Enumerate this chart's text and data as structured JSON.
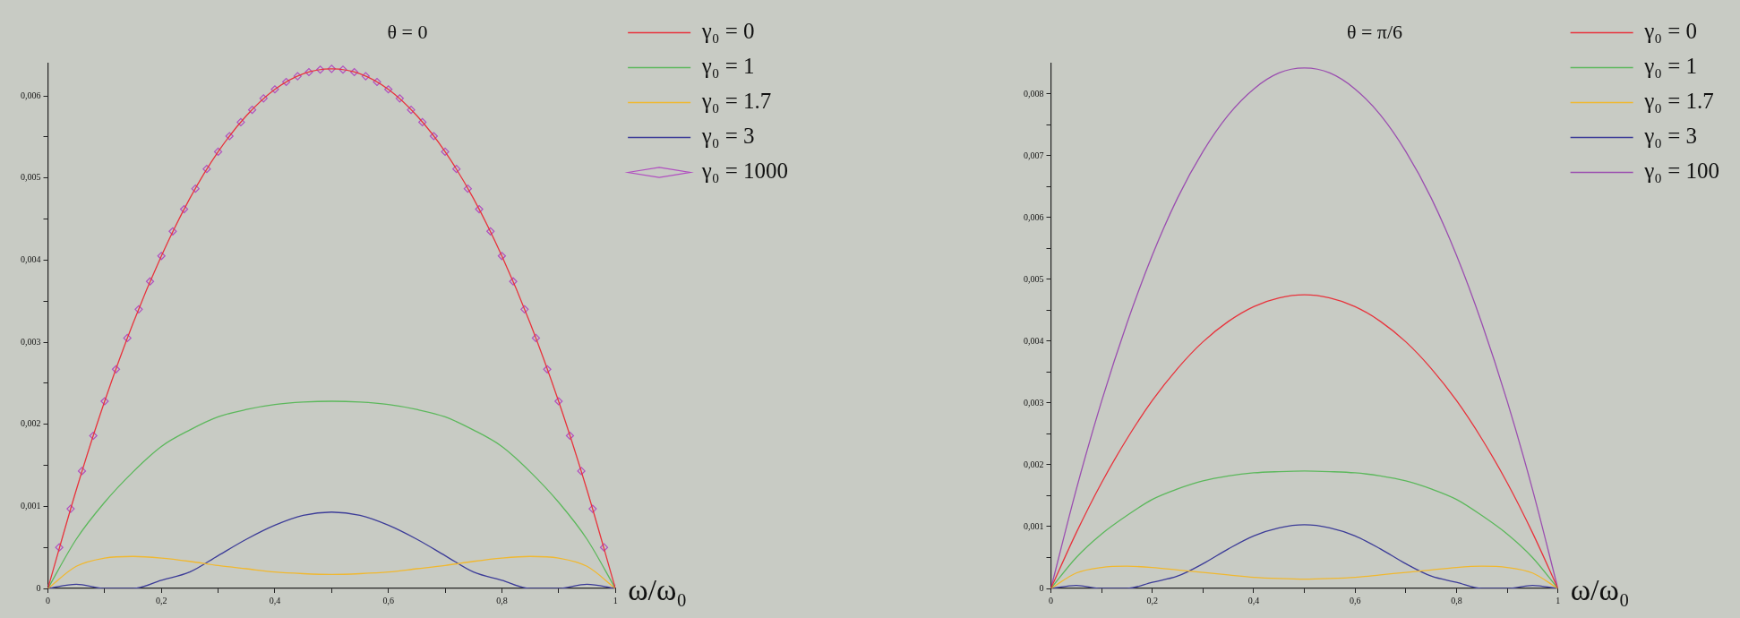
{
  "chart_data": [
    {
      "type": "line",
      "title": "θ = 0",
      "xlabel": "ω/ω₀",
      "legend": "top right",
      "marker": "none",
      "x": [
        0,
        0.05,
        0.1,
        0.15,
        0.2,
        0.25,
        0.3,
        0.35,
        0.4,
        0.45,
        0.5,
        0.55,
        0.6,
        0.65,
        0.7,
        0.75,
        0.8,
        0.85,
        0.9,
        0.95,
        1
      ],
      "xlim": [
        0,
        1
      ],
      "xticks": [
        {
          "value": 0,
          "label": "0"
        },
        {
          "value": 0.1,
          "label": null
        },
        {
          "value": 0.2,
          "label": "0,2"
        },
        {
          "value": 0.3,
          "label": null
        },
        {
          "value": 0.4,
          "label": "0,4"
        },
        {
          "value": 0.5,
          "label": null
        },
        {
          "value": 0.6,
          "label": "0,6"
        },
        {
          "value": 0.7,
          "label": null
        },
        {
          "value": 0.8,
          "label": "0,8"
        },
        {
          "value": 0.9,
          "label": null
        },
        {
          "value": 1,
          "label": "1"
        }
      ],
      "ylim": [
        0,
        0.0064
      ],
      "yticks": [
        {
          "value": 0,
          "label": "0"
        },
        {
          "value": 0.0005,
          "label": null
        },
        {
          "value": 0.001,
          "label": "0,001"
        },
        {
          "value": 0.0015,
          "label": null
        },
        {
          "value": 0.002,
          "label": "0,002"
        },
        {
          "value": 0.0025,
          "label": null
        },
        {
          "value": 0.003,
          "label": "0,003"
        },
        {
          "value": 0.0035,
          "label": null
        },
        {
          "value": 0.004,
          "label": "0,004"
        },
        {
          "value": 0.0045,
          "label": null
        },
        {
          "value": 0.005,
          "label": "0,005"
        },
        {
          "value": 0.0055,
          "label": null
        },
        {
          "value": 0.006,
          "label": "0,006"
        }
      ],
      "series": [
        {
          "name": "γ₀ = 0",
          "color": "#e8333c",
          "values": [
            0,
            0.0012,
            0.00228,
            0.00323,
            0.00405,
            0.00475,
            0.00532,
            0.00576,
            0.00608,
            0.00627,
            0.00633,
            0.00627,
            0.00608,
            0.00576,
            0.00532,
            0.00475,
            0.00405,
            0.00323,
            0.00228,
            0.0012,
            0
          ]
        },
        {
          "name": "γ₀ = 1",
          "color": "#5cb85c",
          "values": [
            0,
            0.0006,
            0.00105,
            0.00142,
            0.00173,
            0.00193,
            0.00209,
            0.00218,
            0.00224,
            0.00227,
            0.00228,
            0.00227,
            0.00224,
            0.00218,
            0.00209,
            0.00193,
            0.00173,
            0.00142,
            0.00105,
            0.0006,
            0
          ]
        },
        {
          "name": "γ₀ = 1.7",
          "color": "#f0b830",
          "values": [
            0,
            0.00027,
            0.00037,
            0.00039,
            0.00037,
            0.00033,
            0.00028,
            0.00024,
            0.0002,
            0.00018,
            0.00017,
            0.00018,
            0.0002,
            0.00024,
            0.00028,
            0.00033,
            0.00037,
            0.00039,
            0.00037,
            0.00027,
            0
          ]
        },
        {
          "name": "γ₀ = 3",
          "color": "#3c3c98",
          "values": [
            0,
            5e-05,
            0,
            0,
            0.0001,
            0.0002,
            0.0004,
            0.0006,
            0.00077,
            0.00089,
            0.00093,
            0.00089,
            0.00077,
            0.0006,
            0.0004,
            0.0002,
            0.0001,
            0,
            0,
            5e-05,
            0
          ]
        },
        {
          "name": "γ₀ = 1000",
          "color": "#b04fc0",
          "type": "scatter",
          "marker": "diamond",
          "x": [
            0,
            0.02,
            0.04,
            0.06,
            0.08,
            0.1,
            0.12,
            0.14,
            0.16,
            0.18,
            0.2,
            0.22,
            0.24,
            0.26,
            0.28,
            0.3,
            0.32,
            0.34,
            0.36,
            0.38,
            0.4,
            0.42,
            0.44,
            0.46,
            0.48,
            0.5,
            0.52,
            0.54,
            0.56,
            0.58,
            0.6,
            0.62,
            0.64,
            0.66,
            0.68,
            0.7,
            0.72,
            0.74,
            0.76,
            0.78,
            0.8,
            0.82,
            0.84,
            0.86,
            0.88,
            0.9,
            0.92,
            0.94,
            0.96,
            0.98,
            1
          ],
          "values": [
            0,
            0.0005,
            0.00097,
            0.00143,
            0.00186,
            0.00228,
            0.00267,
            0.00305,
            0.0034,
            0.00374,
            0.00405,
            0.00435,
            0.00462,
            0.00487,
            0.00511,
            0.00532,
            0.00551,
            0.00568,
            0.00583,
            0.00597,
            0.00608,
            0.00617,
            0.00624,
            0.00629,
            0.00632,
            0.00633,
            0.00632,
            0.00629,
            0.00624,
            0.00617,
            0.00608,
            0.00597,
            0.00583,
            0.00568,
            0.00551,
            0.00532,
            0.00511,
            0.00487,
            0.00462,
            0.00435,
            0.00405,
            0.00374,
            0.0034,
            0.00305,
            0.00267,
            0.00228,
            0.00186,
            0.00143,
            0.00097,
            0.0005,
            0
          ]
        }
      ]
    },
    {
      "type": "line",
      "title": "θ = π/6",
      "xlabel": "ω/ω₀",
      "legend": "top right",
      "marker": "none",
      "x": [
        0,
        0.05,
        0.1,
        0.15,
        0.2,
        0.25,
        0.3,
        0.35,
        0.4,
        0.45,
        0.5,
        0.55,
        0.6,
        0.65,
        0.7,
        0.75,
        0.8,
        0.85,
        0.9,
        0.95,
        1
      ],
      "xlim": [
        0,
        1
      ],
      "xticks": [
        0,
        {
          "value": 0.1,
          "label": null
        },
        {
          "value": 0.2,
          "label": "0,2"
        },
        {
          "value": 0.3,
          "label": null
        },
        {
          "value": 0.4,
          "label": "0,4"
        },
        {
          "value": 0.5,
          "label": null
        },
        {
          "value": 0.6,
          "label": "0,6"
        },
        {
          "value": 0.7,
          "label": null
        },
        {
          "value": 0.8,
          "label": "0,8"
        },
        {
          "value": 0.9,
          "label": null
        },
        1
      ],
      "ylim": [
        0,
        0.0085
      ],
      "yticks": [
        0,
        {
          "value": 0.0005,
          "label": null
        },
        {
          "value": 0.001,
          "label": "0,001"
        },
        {
          "value": 0.0015,
          "label": null
        },
        {
          "value": 0.002,
          "label": "0,002"
        },
        {
          "value": 0.0025,
          "label": null
        },
        {
          "value": 0.003,
          "label": "0,003"
        },
        {
          "value": 0.0035,
          "label": null
        },
        {
          "value": 0.004,
          "label": "0,004"
        },
        {
          "value": 0.0045,
          "label": null
        },
        {
          "value": 0.005,
          "label": "0,005"
        },
        {
          "value": 0.0055,
          "label": null
        },
        {
          "value": 0.006,
          "label": "0,006"
        },
        {
          "value": 0.0065,
          "label": null
        },
        {
          "value": 0.007,
          "label": "0,007"
        },
        {
          "value": 0.0075,
          "label": null
        },
        {
          "value": 0.008,
          "label": "0,008"
        }
      ],
      "series": [
        {
          "name": "γ₀ = 0",
          "color": "#e8333c",
          "values": [
            0,
            0.0009,
            0.00171,
            0.00242,
            0.00304,
            0.00356,
            0.00399,
            0.00432,
            0.00456,
            0.0047,
            0.00475,
            0.0047,
            0.00456,
            0.00432,
            0.00399,
            0.00356,
            0.00304,
            0.00242,
            0.00171,
            0.0009,
            0
          ]
        },
        {
          "name": "γ₀ = 1",
          "color": "#5cb85c",
          "values": [
            0,
            0.0005,
            0.00088,
            0.00118,
            0.00144,
            0.00161,
            0.00174,
            0.00182,
            0.00187,
            0.00189,
            0.0019,
            0.00189,
            0.00187,
            0.00182,
            0.00174,
            0.00161,
            0.00144,
            0.00118,
            0.00088,
            0.0005,
            0
          ]
        },
        {
          "name": "γ₀ = 1.7",
          "color": "#f0b830",
          "values": [
            0,
            0.00025,
            0.00034,
            0.00036,
            0.00034,
            0.0003,
            0.00026,
            0.00022,
            0.00018,
            0.00016,
            0.00015,
            0.00016,
            0.00018,
            0.00022,
            0.00026,
            0.0003,
            0.00034,
            0.00036,
            0.00034,
            0.00025,
            0
          ]
        },
        {
          "name": "γ₀ = 3",
          "color": "#3c3c98",
          "values": [
            0,
            5e-05,
            0,
            0,
            0.0001,
            0.0002,
            0.0004,
            0.00064,
            0.00085,
            0.00098,
            0.00103,
            0.00098,
            0.00085,
            0.00064,
            0.0004,
            0.0002,
            0.0001,
            0,
            0,
            5e-05,
            0
          ]
        },
        {
          "name": "γ₀ = 100",
          "color": "#9b4fb0",
          "values": [
            0,
            0.0016,
            0.00303,
            0.00429,
            0.00539,
            0.00632,
            0.00707,
            0.00766,
            0.00808,
            0.00834,
            0.00842,
            0.00834,
            0.00808,
            0.00766,
            0.00707,
            0.00632,
            0.00539,
            0.00429,
            0.00303,
            0.0016,
            0
          ]
        }
      ]
    }
  ]
}
